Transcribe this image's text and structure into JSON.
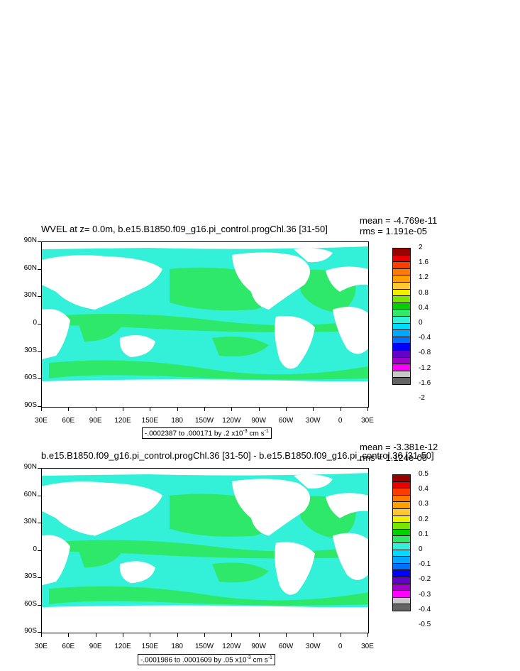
{
  "colors": {
    "ocean_cyan": "#33f0d8",
    "ocean_green": "#2ee86a",
    "land": "#ffffff",
    "outline": "#000000"
  },
  "panels": [
    {
      "title": "WVEL at z=   0.0m, b.e15.B1850.f09_g16.pi_control.progChl.36 [31-50]",
      "mean": "mean = -4.769e-11",
      "rms": "rms = 1.191e-05",
      "info_main": "-.0002387 to .000171 by .2 x10",
      "info_exp": "-3",
      "info_units": " cm s",
      "info_units_exp": "-1",
      "lat_labels": [
        "90N",
        "60N",
        "30N",
        "0",
        "30S",
        "60S",
        "90S"
      ],
      "lon_labels": [
        "30E",
        "60E",
        "90E",
        "120E",
        "150E",
        "180",
        "150W",
        "120W",
        "90W",
        "60W",
        "30W",
        "0",
        "30E"
      ],
      "colorbar_labels": [
        "2",
        "1.6",
        "1.2",
        "0.8",
        "0.4",
        "0",
        "-0.4",
        "-0.8",
        "-1.2",
        "-1.6",
        "-2"
      ],
      "colorbar_colors": [
        "#9b0000",
        "#e80000",
        "#ff3c00",
        "#ff7a00",
        "#ffa000",
        "#ffc830",
        "#f0f000",
        "#78e600",
        "#00d200",
        "#2ee86a",
        "#33f0d8",
        "#00dcff",
        "#00a8ff",
        "#0070ff",
        "#0000ff",
        "#6400c8",
        "#a000c8",
        "#ff00ff",
        "#c8c8c8",
        "#646464"
      ]
    },
    {
      "title": "b.e15.B1850.f09_g16.pi_control.progChl.36 [31-50] - b.e15.B1850.f09_g16.pi_control.36 [31-50]",
      "mean": "mean = -3.381e-12",
      "rms": "rms = 1.124e-05",
      "info_main": "-.0001986 to .0001609 by .05 x10",
      "info_exp": "-3",
      "info_units": " cm s",
      "info_units_exp": "-1",
      "lat_labels": [
        "90N",
        "60N",
        "30N",
        "0",
        "30S",
        "60S",
        "90S"
      ],
      "lon_labels": [
        "30E",
        "60E",
        "90E",
        "120E",
        "150E",
        "180",
        "150W",
        "120W",
        "90W",
        "60W",
        "30W",
        "0",
        "30E"
      ],
      "colorbar_labels": [
        "0.5",
        "0.4",
        "0.3",
        "0.2",
        "0.1",
        "0",
        "-0.1",
        "-0.2",
        "-0.3",
        "-0.4",
        "-0.5"
      ],
      "colorbar_colors": [
        "#9b0000",
        "#e80000",
        "#ff3c00",
        "#ff7a00",
        "#ffa000",
        "#ffc830",
        "#f0f000",
        "#78e600",
        "#00d200",
        "#2ee86a",
        "#33f0d8",
        "#00dcff",
        "#00a8ff",
        "#0070ff",
        "#0000ff",
        "#6400c8",
        "#a000c8",
        "#ff00ff",
        "#c8c8c8",
        "#646464"
      ]
    }
  ]
}
